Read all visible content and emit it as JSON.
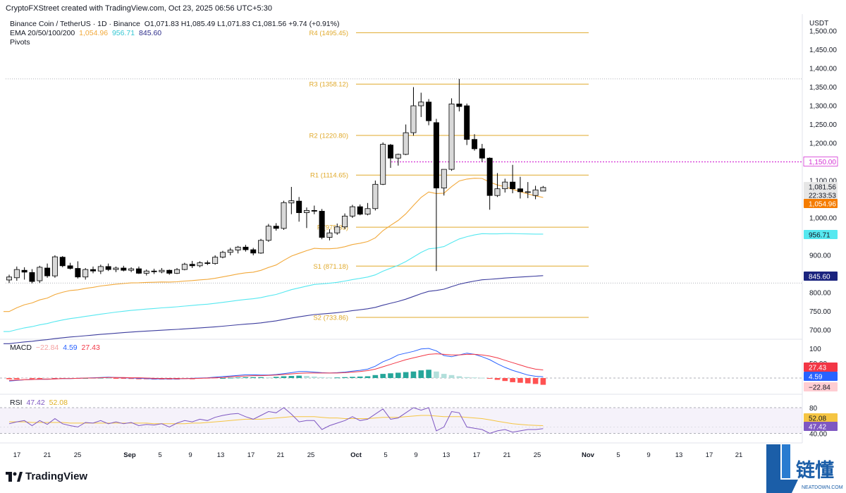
{
  "header": {
    "credit": "CryptoFXStreet created with TradingView.com, Oct 23, 2025 06:56 UTC+5:30",
    "symbol": "Binance Coin / TetherUS · 1D · Binance",
    "ohlc": "O1,071.83 H1,085.49 L1,071.83 C1,081.56 +9.74 (+0.91%)",
    "ema_label": "EMA 20/50/100/200",
    "ema_values": [
      "1,054.96",
      "956.71",
      "845.60"
    ],
    "pivots_label": "Pivots"
  },
  "macd_legend": {
    "label": "MACD",
    "values": [
      "−22.84",
      "4.59",
      "27.43"
    ]
  },
  "rsi_legend": {
    "label": "RSI",
    "values": [
      "47.42",
      "52.08"
    ]
  },
  "footer": {
    "brand": "TradingView"
  },
  "watermark": {
    "cn": "链懂",
    "en": "NEATDOWN.COM"
  },
  "colors": {
    "up": "#d9d9d9",
    "down": "#000000",
    "ema20": "#f2a93b",
    "ema50": "#56e8f0",
    "ema100": "#3d3d9e",
    "pivot": "#e0a92a",
    "highlight": "#d532d5",
    "macd": "#2962ff",
    "signal": "#f23645"
  },
  "chart_data": {
    "type": "candlestick",
    "symbol": "BNBUSDT",
    "timeframe": "1D",
    "price_axis": {
      "label": "USDT",
      "ticks": [
        700,
        750,
        800,
        850,
        900,
        950,
        1000,
        1050,
        1100,
        1150,
        1200,
        1250,
        1300,
        1350,
        1400,
        1450,
        1500
      ],
      "tick_labels": [
        "700.00",
        "750.00",
        "800.00",
        "850.00",
        "900.00",
        "950.00",
        "1,000.00",
        "1,050.00",
        "1,100.00",
        "1,150.00",
        "1,200.00",
        "1,250.00",
        "1,300.00",
        "1,350.00",
        "1,400.00",
        "1,450.00",
        "1,500.00"
      ]
    },
    "x_axis_labels": [
      "17",
      "21",
      "25",
      "Sep",
      "5",
      "9",
      "13",
      "17",
      "21",
      "25",
      "Oct",
      "5",
      "9",
      "13",
      "17",
      "21",
      "25",
      "Nov",
      "5",
      "9",
      "13",
      "17",
      "21"
    ],
    "candles": [
      {
        "o": 834,
        "h": 848,
        "l": 826,
        "c": 842
      },
      {
        "o": 840,
        "h": 870,
        "l": 832,
        "c": 862
      },
      {
        "o": 860,
        "h": 868,
        "l": 835,
        "c": 855
      },
      {
        "o": 854,
        "h": 863,
        "l": 825,
        "c": 830
      },
      {
        "o": 832,
        "h": 872,
        "l": 826,
        "c": 868
      },
      {
        "o": 866,
        "h": 878,
        "l": 840,
        "c": 845
      },
      {
        "o": 845,
        "h": 900,
        "l": 840,
        "c": 896
      },
      {
        "o": 895,
        "h": 898,
        "l": 868,
        "c": 872
      },
      {
        "o": 872,
        "h": 880,
        "l": 862,
        "c": 865
      },
      {
        "o": 865,
        "h": 884,
        "l": 838,
        "c": 842
      },
      {
        "o": 842,
        "h": 866,
        "l": 835,
        "c": 862
      },
      {
        "o": 862,
        "h": 870,
        "l": 852,
        "c": 858
      },
      {
        "o": 858,
        "h": 875,
        "l": 850,
        "c": 870
      },
      {
        "o": 870,
        "h": 878,
        "l": 858,
        "c": 862
      },
      {
        "o": 862,
        "h": 870,
        "l": 855,
        "c": 866
      },
      {
        "o": 866,
        "h": 872,
        "l": 857,
        "c": 860
      },
      {
        "o": 860,
        "h": 868,
        "l": 855,
        "c": 864
      },
      {
        "o": 864,
        "h": 870,
        "l": 850,
        "c": 852
      },
      {
        "o": 852,
        "h": 862,
        "l": 846,
        "c": 858
      },
      {
        "o": 858,
        "h": 864,
        "l": 850,
        "c": 856
      },
      {
        "o": 856,
        "h": 866,
        "l": 852,
        "c": 860
      },
      {
        "o": 860,
        "h": 862,
        "l": 848,
        "c": 852
      },
      {
        "o": 852,
        "h": 866,
        "l": 850,
        "c": 862
      },
      {
        "o": 862,
        "h": 880,
        "l": 860,
        "c": 876
      },
      {
        "o": 876,
        "h": 885,
        "l": 866,
        "c": 872
      },
      {
        "o": 872,
        "h": 884,
        "l": 868,
        "c": 880
      },
      {
        "o": 880,
        "h": 886,
        "l": 874,
        "c": 878
      },
      {
        "o": 878,
        "h": 900,
        "l": 875,
        "c": 895
      },
      {
        "o": 895,
        "h": 912,
        "l": 892,
        "c": 908
      },
      {
        "o": 908,
        "h": 920,
        "l": 900,
        "c": 914
      },
      {
        "o": 914,
        "h": 925,
        "l": 905,
        "c": 922
      },
      {
        "o": 922,
        "h": 928,
        "l": 910,
        "c": 915
      },
      {
        "o": 915,
        "h": 920,
        "l": 900,
        "c": 906
      },
      {
        "o": 906,
        "h": 944,
        "l": 904,
        "c": 940
      },
      {
        "o": 940,
        "h": 984,
        "l": 936,
        "c": 978
      },
      {
        "o": 978,
        "h": 986,
        "l": 966,
        "c": 972
      },
      {
        "o": 972,
        "h": 1046,
        "l": 968,
        "c": 1041
      },
      {
        "o": 1040,
        "h": 1083,
        "l": 1010,
        "c": 1046
      },
      {
        "o": 1045,
        "h": 1056,
        "l": 990,
        "c": 1014
      },
      {
        "o": 1014,
        "h": 1028,
        "l": 973,
        "c": 1020
      },
      {
        "o": 1020,
        "h": 1033,
        "l": 1010,
        "c": 1018
      },
      {
        "o": 1018,
        "h": 1024,
        "l": 943,
        "c": 948
      },
      {
        "o": 948,
        "h": 970,
        "l": 940,
        "c": 960
      },
      {
        "o": 960,
        "h": 985,
        "l": 955,
        "c": 976
      },
      {
        "o": 976,
        "h": 1012,
        "l": 970,
        "c": 1005
      },
      {
        "o": 1005,
        "h": 1035,
        "l": 1000,
        "c": 1030
      },
      {
        "o": 1030,
        "h": 1036,
        "l": 1007,
        "c": 1010
      },
      {
        "o": 1010,
        "h": 1040,
        "l": 1007,
        "c": 1025
      },
      {
        "o": 1025,
        "h": 1100,
        "l": 1020,
        "c": 1090
      },
      {
        "o": 1090,
        "h": 1202,
        "l": 1088,
        "c": 1197
      },
      {
        "o": 1195,
        "h": 1198,
        "l": 1134,
        "c": 1160
      },
      {
        "o": 1160,
        "h": 1172,
        "l": 1140,
        "c": 1170
      },
      {
        "o": 1170,
        "h": 1250,
        "l": 1168,
        "c": 1228
      },
      {
        "o": 1228,
        "h": 1350,
        "l": 1220,
        "c": 1300
      },
      {
        "o": 1300,
        "h": 1335,
        "l": 1270,
        "c": 1310
      },
      {
        "o": 1310,
        "h": 1318,
        "l": 1248,
        "c": 1260
      },
      {
        "o": 1255,
        "h": 1265,
        "l": 858,
        "c": 1080
      },
      {
        "o": 1080,
        "h": 1125,
        "l": 1060,
        "c": 1130
      },
      {
        "o": 1130,
        "h": 1320,
        "l": 1126,
        "c": 1305
      },
      {
        "o": 1305,
        "h": 1372,
        "l": 1285,
        "c": 1298
      },
      {
        "o": 1300,
        "h": 1306,
        "l": 1195,
        "c": 1210
      },
      {
        "o": 1210,
        "h": 1224,
        "l": 1180,
        "c": 1185
      },
      {
        "o": 1185,
        "h": 1198,
        "l": 1150,
        "c": 1160
      },
      {
        "o": 1160,
        "h": 1162,
        "l": 1022,
        "c": 1060
      },
      {
        "o": 1060,
        "h": 1120,
        "l": 1056,
        "c": 1078
      },
      {
        "o": 1078,
        "h": 1105,
        "l": 1068,
        "c": 1096
      },
      {
        "o": 1096,
        "h": 1142,
        "l": 1066,
        "c": 1078
      },
      {
        "o": 1078,
        "h": 1110,
        "l": 1052,
        "c": 1070
      },
      {
        "o": 1070,
        "h": 1096,
        "l": 1053,
        "c": 1070
      },
      {
        "o": 1060,
        "h": 1086,
        "l": 1050,
        "c": 1075
      },
      {
        "o": 1071.83,
        "h": 1085.49,
        "l": 1071.83,
        "c": 1081.56
      }
    ],
    "ema": [
      {
        "name": "EMA 20",
        "last": 1054.96
      },
      {
        "name": "EMA 50",
        "last": 956.71
      },
      {
        "name": "EMA 100",
        "last": 845.6
      }
    ],
    "pivots": [
      {
        "label": "R4 (1495.45)",
        "value": 1495.45
      },
      {
        "label": "R3 (1358.12)",
        "value": 1358.12
      },
      {
        "label": "R2 (1220.80)",
        "value": 1220.8
      },
      {
        "label": "R1 (1114.65)",
        "value": 1114.65
      },
      {
        "label": "P (975.33)",
        "value": 975.33
      },
      {
        "label": "S1 (871.18)",
        "value": 871.18
      },
      {
        "label": "S2 (733.86)",
        "value": 733.86
      }
    ],
    "horizontal_lines": [
      1150.0,
      1372.0,
      826.0
    ],
    "price_tags": [
      {
        "text": "1,150.00",
        "role": "horizontal-line"
      },
      {
        "text": "1,081.56",
        "role": "last-price"
      },
      {
        "text": "22:33:53",
        "role": "countdown"
      },
      {
        "text": "1,054.96",
        "role": "ema20"
      },
      {
        "text": "956.71",
        "role": "ema50"
      },
      {
        "text": "845.60",
        "role": "ema100"
      }
    ],
    "macd": {
      "axis_ticks": [
        "100",
        "50.00"
      ],
      "tags": [
        "27.43",
        "4.59",
        "−22.84"
      ],
      "histogram": [
        -4,
        -4,
        -3,
        -3,
        -3,
        -2,
        -2,
        -2,
        -1,
        -1,
        0,
        1,
        1,
        0,
        -1,
        -2,
        -3,
        -4,
        -4,
        -5,
        -5,
        -5,
        -5,
        -4,
        -4,
        -3,
        -2,
        -1,
        0,
        1,
        2,
        3,
        3,
        3,
        2,
        4,
        6,
        7,
        8,
        7,
        5,
        3,
        2,
        2,
        3,
        4,
        5,
        6,
        10,
        14,
        16,
        18,
        20,
        22,
        26,
        28,
        22,
        14,
        10,
        6,
        3,
        2,
        1,
        -1,
        -6,
        -10,
        -14,
        -16,
        -18,
        -20,
        -22.84
      ],
      "macd_line": [
        -10,
        -8,
        -6,
        -5,
        -4,
        -4,
        -3,
        -2,
        -2,
        -1,
        0,
        1,
        2,
        3,
        2,
        1,
        0,
        -1,
        -2,
        -3,
        -3,
        -3,
        -3,
        -2,
        -1,
        0,
        1,
        3,
        5,
        7,
        9,
        11,
        11,
        10,
        10,
        12,
        15,
        18,
        22,
        22,
        20,
        18,
        17,
        18,
        20,
        23,
        26,
        30,
        40,
        55,
        65,
        78,
        84,
        90,
        98,
        100,
        92,
        76,
        72,
        78,
        84,
        80,
        72,
        62,
        48,
        36,
        26,
        18,
        10,
        6,
        4.59
      ],
      "signal_line": [
        -8,
        -7,
        -6,
        -5,
        -4,
        -4,
        -3,
        -2,
        -2,
        -1,
        0,
        0,
        1,
        2,
        2,
        2,
        1,
        1,
        0,
        -1,
        -2,
        -2,
        -2,
        -2,
        -2,
        -1,
        0,
        1,
        2,
        4,
        6,
        7,
        8,
        8,
        9,
        10,
        12,
        14,
        16,
        17,
        17,
        17,
        17,
        17,
        18,
        20,
        22,
        25,
        30,
        38,
        46,
        54,
        62,
        68,
        74,
        80,
        82,
        80,
        78,
        78,
        80,
        80,
        78,
        74,
        68,
        60,
        52,
        44,
        36,
        30,
        27.43
      ]
    },
    "rsi": {
      "axis_ticks": [
        "80",
        "40.00"
      ],
      "tags": [
        "52.08",
        "47.42"
      ],
      "rsi_line": [
        55,
        58,
        60,
        52,
        60,
        54,
        63,
        55,
        52,
        50,
        57,
        56,
        60,
        55,
        58,
        55,
        57,
        52,
        54,
        53,
        55,
        50,
        56,
        60,
        58,
        62,
        60,
        65,
        68,
        70,
        71,
        66,
        62,
        68,
        74,
        72,
        80,
        70,
        58,
        60,
        60,
        46,
        52,
        56,
        60,
        66,
        60,
        62,
        70,
        78,
        62,
        64,
        72,
        80,
        76,
        80,
        44,
        50,
        74,
        72,
        50,
        48,
        46,
        40,
        44,
        46,
        42,
        44,
        46,
        46,
        47.42
      ],
      "rsi_ma": [
        58,
        58,
        58,
        57,
        57,
        57,
        57,
        57,
        56,
        56,
        56,
        56,
        56,
        56,
        56,
        56,
        56,
        56,
        56,
        55,
        55,
        55,
        55,
        55,
        56,
        56,
        57,
        58,
        59,
        60,
        61,
        62,
        62,
        62,
        63,
        64,
        65,
        66,
        66,
        66,
        66,
        65,
        64,
        64,
        63,
        63,
        63,
        63,
        64,
        65,
        65,
        65,
        66,
        67,
        68,
        68,
        67,
        66,
        66,
        66,
        65,
        64,
        63,
        61,
        59,
        57,
        55,
        54,
        53,
        52.5,
        52.08
      ]
    }
  }
}
